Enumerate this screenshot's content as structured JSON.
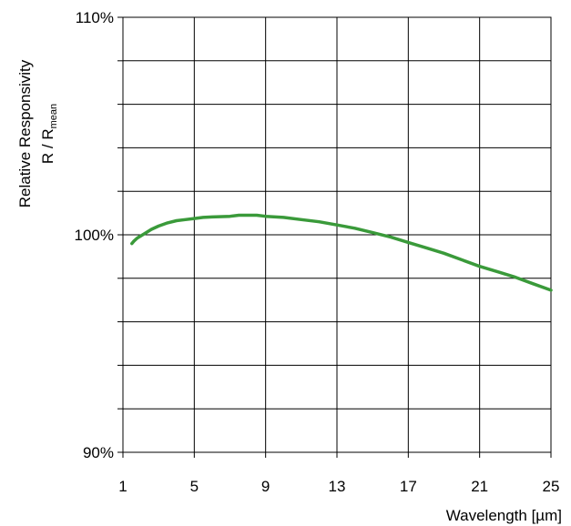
{
  "chart_data": {
    "type": "line",
    "xlabel": "Wavelength [µm]",
    "ylabel_line1": "Relative Responsivity",
    "ylabel_line2_main": "R / R",
    "ylabel_line2_sub": "mean",
    "xlim": [
      1,
      25
    ],
    "ylim": [
      90,
      110
    ],
    "x_ticks": [
      1,
      5,
      9,
      13,
      17,
      21,
      25
    ],
    "x_tick_labels": [
      "1",
      "5",
      "9",
      "13",
      "17",
      "21",
      "25"
    ],
    "x_grid_lines": [
      5,
      9,
      13,
      17,
      21
    ],
    "y_ticks": [
      90,
      100,
      110
    ],
    "y_tick_labels": [
      "90%",
      "100%",
      "110%"
    ],
    "y_grid_lines": [
      92,
      94,
      96,
      98,
      100,
      102,
      104,
      106,
      108
    ],
    "grid": true,
    "colors": {
      "series": "#3a9a3a",
      "grid": "#000000"
    },
    "series": [
      {
        "x": [
          1.5,
          1.6,
          1.8,
          2.0,
          2.3,
          2.6,
          3.0,
          3.5,
          4.0,
          4.5,
          5.0,
          5.5,
          6.0,
          7.0,
          7.5,
          8.0,
          8.5,
          9.0,
          10.0,
          11.0,
          12.0,
          13.0,
          14.0,
          15.0,
          16.0,
          17.0,
          18.0,
          19.0,
          20.0,
          21.0,
          22.0,
          23.0,
          24.0,
          25.0
        ],
        "y": [
          99.6,
          99.7,
          99.85,
          99.95,
          100.1,
          100.25,
          100.4,
          100.55,
          100.65,
          100.7,
          100.75,
          100.8,
          100.82,
          100.85,
          100.9,
          100.9,
          100.9,
          100.85,
          100.8,
          100.7,
          100.6,
          100.45,
          100.3,
          100.1,
          99.9,
          99.65,
          99.4,
          99.15,
          98.85,
          98.55,
          98.3,
          98.05,
          97.75,
          97.45
        ]
      }
    ]
  }
}
